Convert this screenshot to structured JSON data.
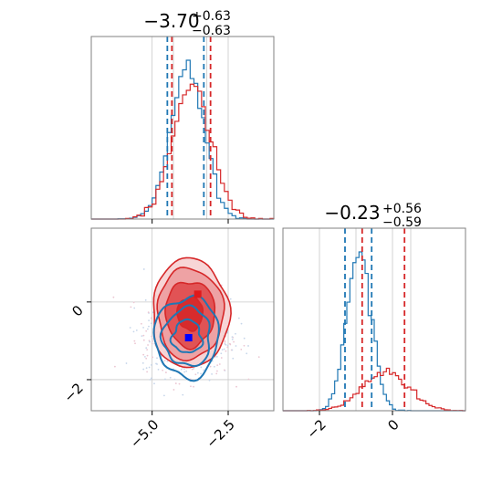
{
  "chart_data": {
    "type": "corner",
    "colors": {
      "blue": "#1f77b4",
      "red": "#d62728",
      "marker_blue": "#0000ff",
      "marker_red": "#e0191b",
      "grid": "#c8c8c8",
      "frame": "#808080"
    },
    "param1": {
      "title": {
        "median": "−3.70",
        "plus": "+0.63",
        "minus": "−0.63"
      },
      "xlim": [
        -7.0,
        -1.0
      ],
      "ticks": [
        -5.0,
        -2.5
      ],
      "tick_labels": [
        "−5.0",
        "−2.5"
      ],
      "blue_quantiles": [
        -4.5,
        -3.3
      ],
      "red_quantiles": [
        -4.35,
        -3.08
      ],
      "blue_mean": -3.85,
      "blue_sd": 0.55,
      "red_mean": -3.7,
      "red_sd": 0.62
    },
    "param2": {
      "title": {
        "median": "−0.23",
        "plus": "+0.56",
        "minus": "−0.59"
      },
      "xlim": [
        -3.0,
        2.0
      ],
      "ticks": [
        -2,
        0
      ],
      "tick_labels": [
        "−2",
        "0"
      ],
      "blue_quantiles": [
        -1.3,
        -0.57
      ],
      "red_quantiles": [
        -0.83,
        0.33
      ],
      "blue_mean": -0.92,
      "blue_sd": 0.33,
      "red_mean": -0.2,
      "red_sd": 0.62
    },
    "joint": {
      "ylim": [
        -2.8,
        1.9
      ],
      "yticks": [
        0,
        -2
      ],
      "ytick_labels": [
        "0",
        "−2"
      ],
      "blue_marker": [
        -3.8,
        -0.92
      ],
      "red_marker": [
        -3.5,
        0.2
      ]
    }
  }
}
